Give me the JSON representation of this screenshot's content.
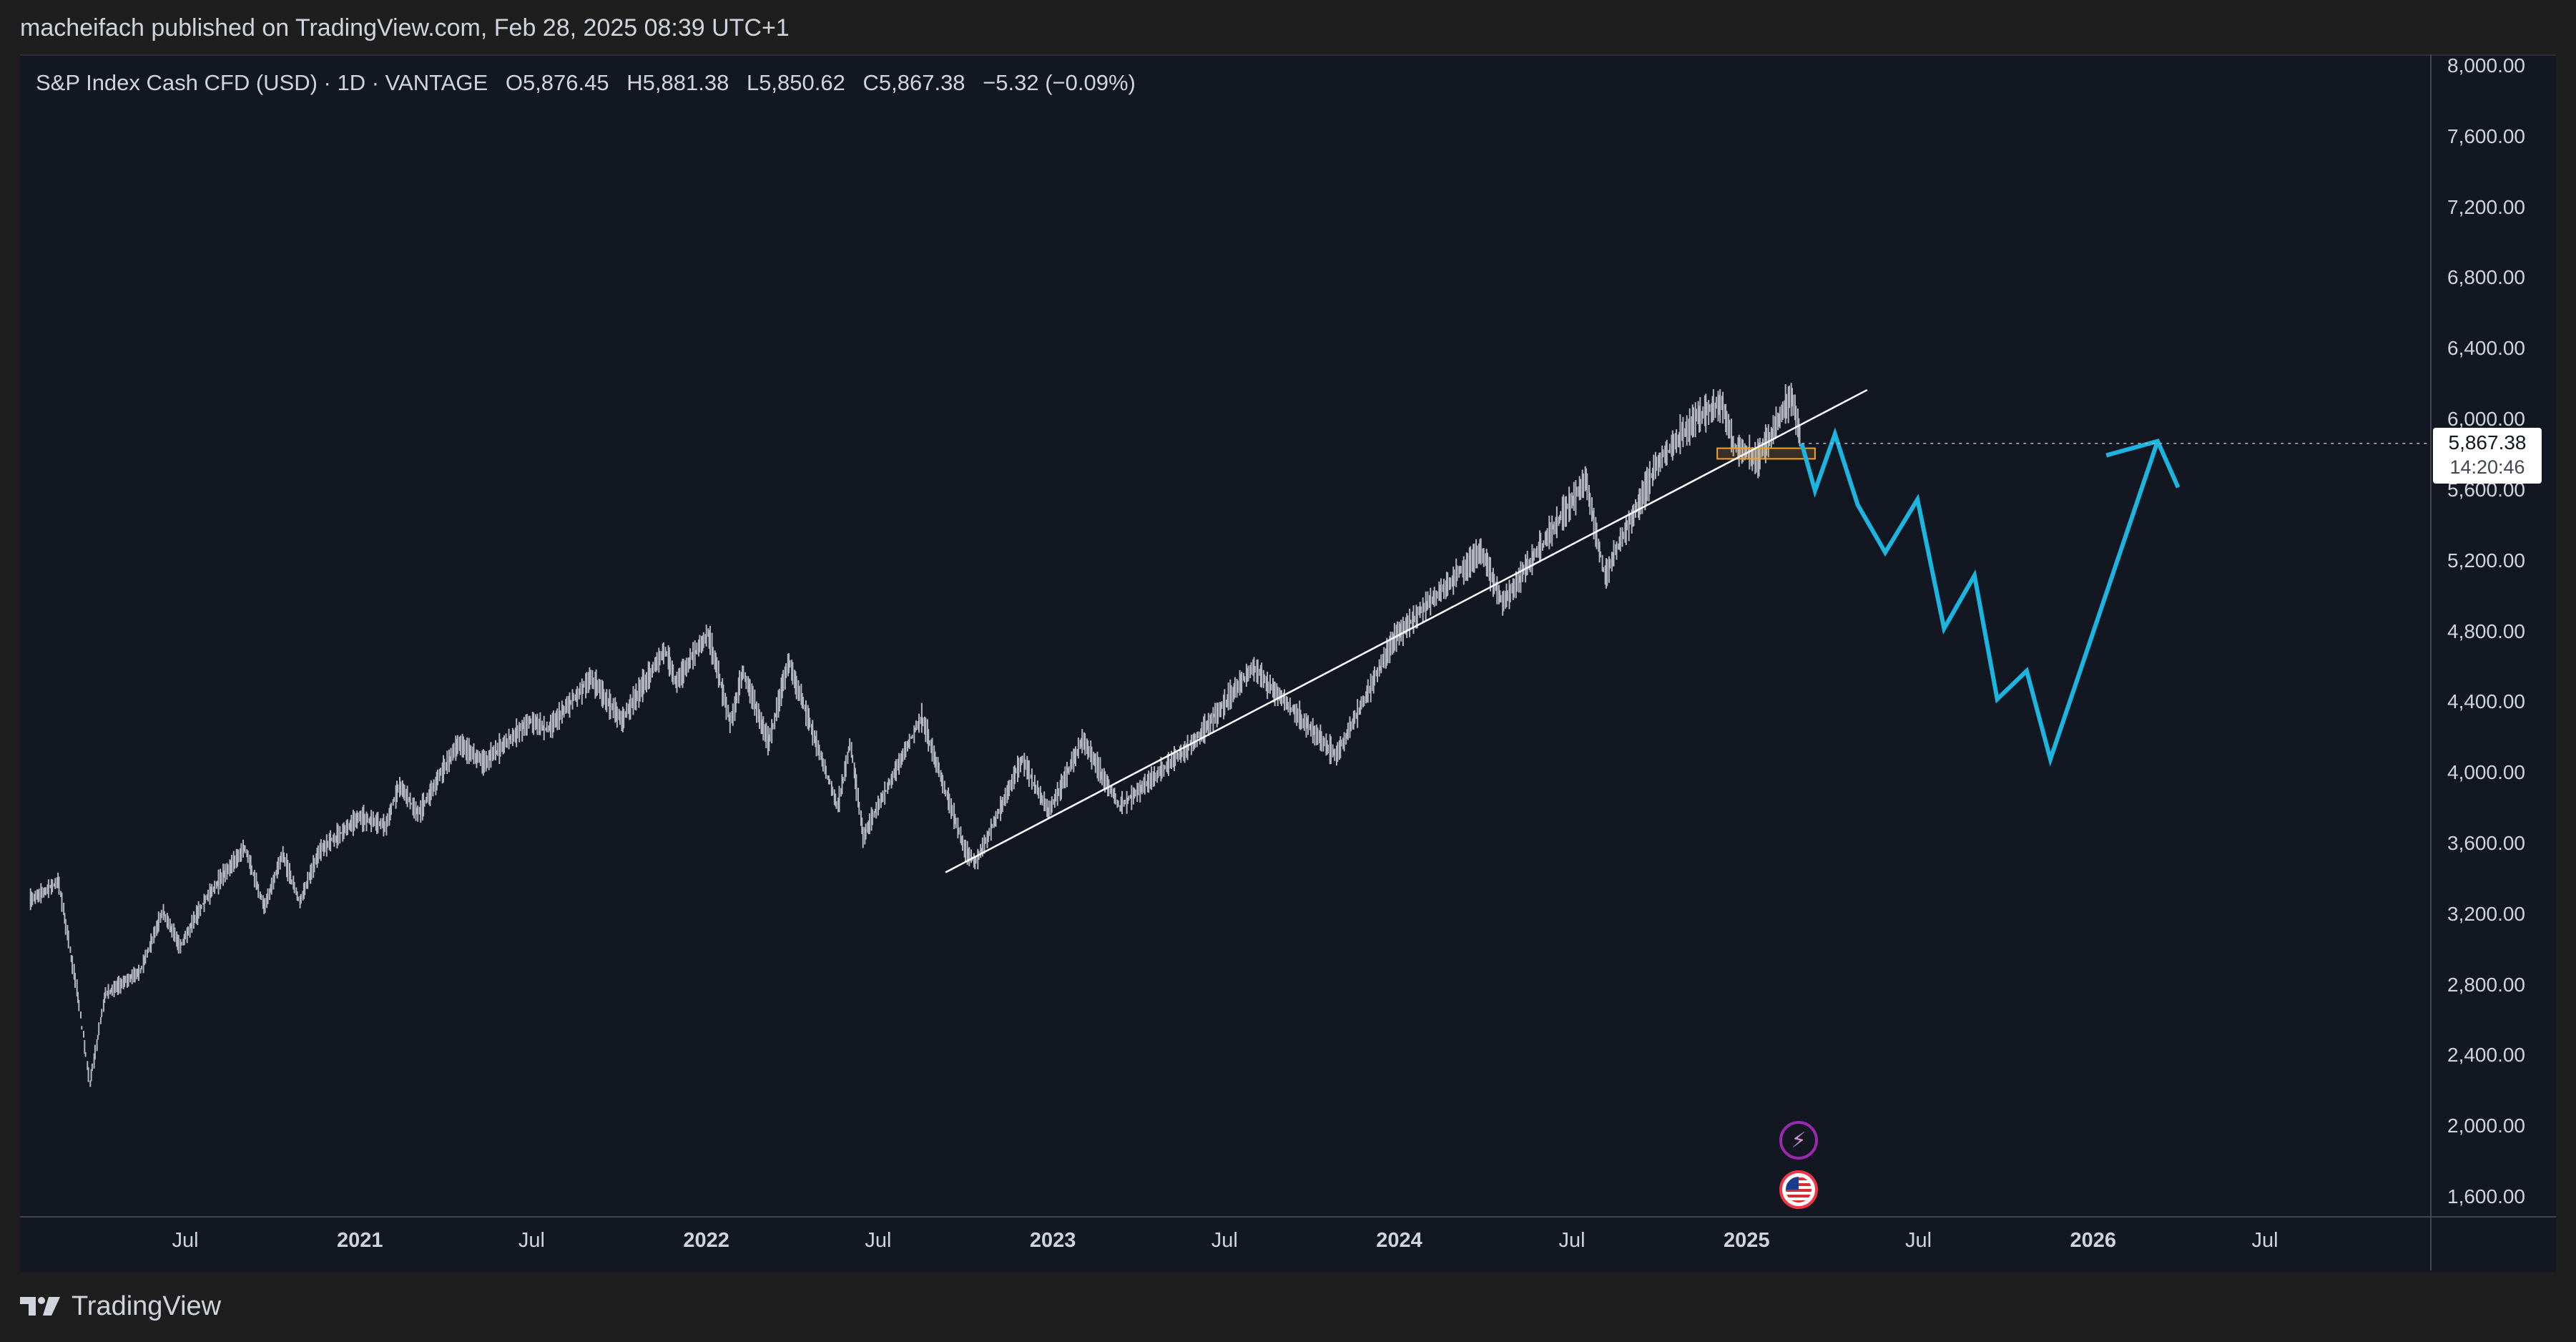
{
  "header": {
    "published": "macheifach published on TradingView.com, Feb 28, 2025 08:39 UTC+1"
  },
  "legend": {
    "symbol": "S&P Index Cash CFD (USD) · 1D · VANTAGE",
    "open_label": "O",
    "open": "5,876.45",
    "high_label": "H",
    "high": "5,881.38",
    "low_label": "L",
    "low": "5,850.62",
    "close_label": "C",
    "close": "5,867.38",
    "change": "−5.32 (−0.09%)"
  },
  "price_box": {
    "price": "5,867.38",
    "countdown": "14:20:46"
  },
  "brand": {
    "name": "TradingView"
  },
  "icons": {
    "event_icon": "lightning-icon",
    "flag_icon": "us-flag-icon",
    "logo": "tradingview-logo-icon"
  },
  "colors": {
    "background": "#131722",
    "candles": "#b2b5be",
    "trendline": "#ffffff",
    "projection": "#1cb5e0",
    "support_box": "#f0a030"
  },
  "chart_data": {
    "type": "line",
    "title": "",
    "ylabel": "",
    "xlabel": "",
    "ylim": [
      1450,
      8060
    ],
    "y_ticks": [
      "8,000.00",
      "7,600.00",
      "7,200.00",
      "6,800.00",
      "6,400.00",
      "6,000.00",
      "5,600.00",
      "5,200.00",
      "4,800.00",
      "4,400.00",
      "4,000.00",
      "3,600.00",
      "3,200.00",
      "2,800.00",
      "2,400.00",
      "2,000.00",
      "1,600.00"
    ],
    "x_ticks": [
      {
        "label": "Jul",
        "date": "2020-07-01",
        "year": false
      },
      {
        "label": "2021",
        "date": "2021-01-01",
        "year": true
      },
      {
        "label": "Jul",
        "date": "2021-07-01",
        "year": false
      },
      {
        "label": "2022",
        "date": "2022-01-01",
        "year": true
      },
      {
        "label": "Jul",
        "date": "2022-07-01",
        "year": false
      },
      {
        "label": "2023",
        "date": "2023-01-01",
        "year": true
      },
      {
        "label": "Jul",
        "date": "2023-07-01",
        "year": false
      },
      {
        "label": "2024",
        "date": "2024-01-01",
        "year": true
      },
      {
        "label": "Jul",
        "date": "2024-07-01",
        "year": false
      },
      {
        "label": "2025",
        "date": "2025-01-01",
        "year": true
      },
      {
        "label": "Jul",
        "date": "2025-07-01",
        "year": false
      },
      {
        "label": "2026",
        "date": "2026-01-01",
        "year": true
      },
      {
        "label": "Jul",
        "date": "2026-07-01",
        "year": false
      }
    ],
    "grid": false,
    "series": [
      {
        "values": [
          [
            "2020-01-20",
            3280
          ],
          [
            "2020-02-19",
            3390
          ],
          [
            "2020-03-10",
            2750
          ],
          [
            "2020-03-23",
            2240
          ],
          [
            "2020-04-08",
            2750
          ],
          [
            "2020-05-15",
            2880
          ],
          [
            "2020-06-08",
            3220
          ],
          [
            "2020-06-26",
            3020
          ],
          [
            "2020-07-22",
            3280
          ],
          [
            "2020-09-02",
            3580
          ],
          [
            "2020-09-23",
            3240
          ],
          [
            "2020-10-12",
            3540
          ],
          [
            "2020-10-30",
            3270
          ],
          [
            "2020-11-20",
            3560
          ],
          [
            "2020-12-31",
            3750
          ],
          [
            "2021-01-29",
            3710
          ],
          [
            "2021-02-12",
            3930
          ],
          [
            "2021-03-04",
            3770
          ],
          [
            "2021-04-15",
            4170
          ],
          [
            "2021-05-12",
            4060
          ],
          [
            "2021-06-30",
            4300
          ],
          [
            "2021-07-19",
            4250
          ],
          [
            "2021-09-02",
            4540
          ],
          [
            "2021-10-04",
            4300
          ],
          [
            "2021-11-19",
            4700
          ],
          [
            "2021-12-01",
            4510
          ],
          [
            "2022-01-03",
            4800
          ],
          [
            "2022-01-27",
            4280
          ],
          [
            "2022-02-09",
            4580
          ],
          [
            "2022-03-08",
            4170
          ],
          [
            "2022-03-29",
            4640
          ],
          [
            "2022-05-20",
            3810
          ],
          [
            "2022-06-02",
            4170
          ],
          [
            "2022-06-16",
            3640
          ],
          [
            "2022-08-16",
            4320
          ],
          [
            "2022-09-30",
            3580
          ],
          [
            "2022-10-12",
            3490
          ],
          [
            "2022-11-30",
            4080
          ],
          [
            "2022-12-28",
            3780
          ],
          [
            "2023-02-02",
            4190
          ],
          [
            "2023-03-13",
            3810
          ],
          [
            "2023-05-31",
            4180
          ],
          [
            "2023-07-31",
            4600
          ],
          [
            "2023-10-27",
            4100
          ],
          [
            "2023-12-29",
            4780
          ],
          [
            "2024-03-28",
            5260
          ],
          [
            "2024-04-19",
            4960
          ],
          [
            "2024-07-16",
            5660
          ],
          [
            "2024-08-05",
            5120
          ],
          [
            "2024-09-30",
            5760
          ],
          [
            "2024-11-11",
            6020
          ],
          [
            "2024-12-06",
            6090
          ],
          [
            "2024-12-19",
            5850
          ],
          [
            "2025-01-13",
            5780
          ],
          [
            "2025-02-18",
            6140
          ],
          [
            "2025-02-28",
            5867
          ]
        ]
      },
      {
        "values": [
          [
            "2025-02-28",
            5867
          ],
          [
            "2025-03-14",
            5600
          ],
          [
            "2025-04-04",
            5920
          ],
          [
            "2025-04-28",
            5520
          ],
          [
            "2025-05-27",
            5250
          ],
          [
            "2025-06-30",
            5550
          ],
          [
            "2025-07-28",
            4820
          ],
          [
            "2025-08-29",
            5120
          ],
          [
            "2025-09-22",
            4420
          ],
          [
            "2025-10-23",
            4580
          ],
          [
            "2025-11-17",
            4080
          ],
          [
            "2026-03-10",
            5880
          ],
          [
            "2026-02-14",
            5800
          ],
          [
            "2026-03-10",
            5880
          ],
          [
            "2026-03-24",
            5780
          ]
        ]
      }
    ],
    "trendline": [
      [
        "2022-09-10",
        3440
      ],
      [
        "2025-05-08",
        6170
      ]
    ],
    "support_zone": {
      "x": [
        "2024-12-01",
        "2025-03-14"
      ],
      "y": [
        5780,
        5840
      ]
    }
  }
}
